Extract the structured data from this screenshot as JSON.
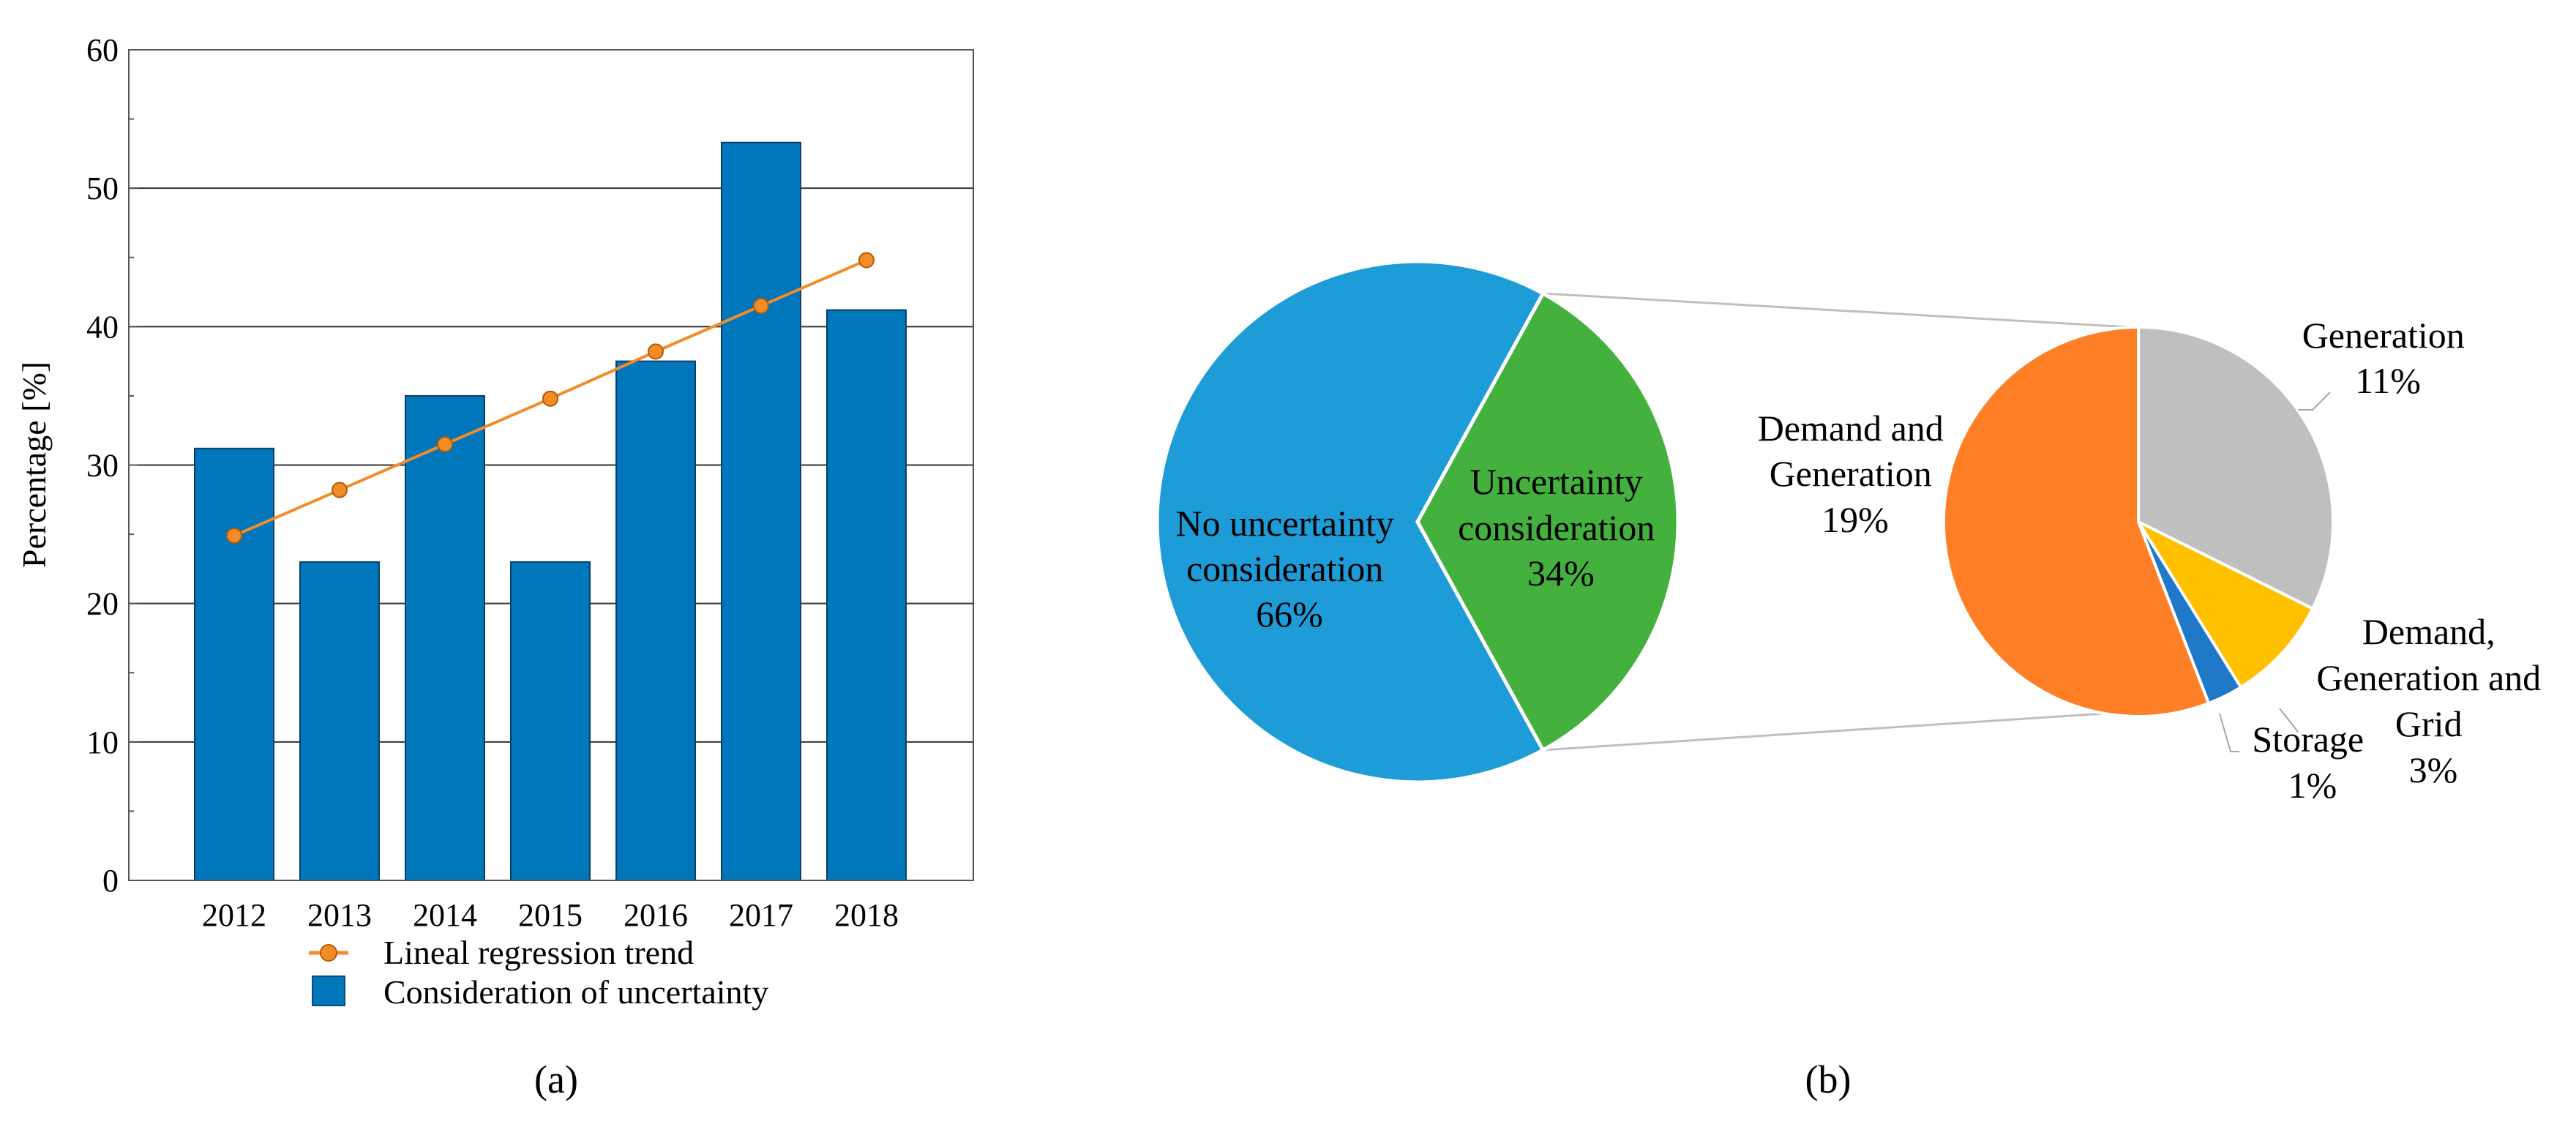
{
  "chart_data": [
    {
      "type": "bar",
      "categories": [
        "2012",
        "2013",
        "2014",
        "2015",
        "2016",
        "2017",
        "2018"
      ],
      "series": [
        {
          "name": "Consideration of uncertainty",
          "type": "bar",
          "values": [
            31.2,
            23.0,
            35.0,
            23.0,
            37.5,
            53.3,
            41.2
          ],
          "color": "#0077BB"
        },
        {
          "name": "Lineal regression trend",
          "type": "line",
          "values": [
            24.9,
            28.2,
            31.5,
            34.8,
            38.2,
            41.5,
            44.8
          ],
          "color": "#F28C28"
        }
      ],
      "title": "",
      "xlabel": "",
      "ylabel": "Percentage [%]",
      "ylim": [
        0,
        60
      ],
      "yticks": [
        0,
        10,
        20,
        30,
        40,
        50,
        60
      ],
      "grid": true,
      "legend_position": "bottom",
      "panel_label": "(a)"
    },
    {
      "type": "pie",
      "slices": [
        {
          "label": "No uncertainty\nconsideration",
          "value_label": "66%",
          "value": 66,
          "color": "#1E9CD7"
        },
        {
          "label": "Uncertainty\nconsideration",
          "value_label": "34%",
          "value": 34,
          "color": "#44B03E"
        }
      ],
      "panel_label": "(b)"
    },
    {
      "type": "pie",
      "subset_of": "Uncertainty consideration",
      "slices": [
        {
          "label": "Generation",
          "value_label": "11%",
          "value": 11,
          "color": "#BFBFBF"
        },
        {
          "label": "Demand,\nGeneration and\nGrid",
          "value_label": "3%",
          "value": 3,
          "color": "#FFC000"
        },
        {
          "label": "Storage",
          "value_label": "1%",
          "value": 1,
          "color": "#1F78C8"
        },
        {
          "label": "Demand and\nGeneration",
          "value_label": "19%",
          "value": 19,
          "color": "#FF7F27"
        }
      ]
    }
  ]
}
